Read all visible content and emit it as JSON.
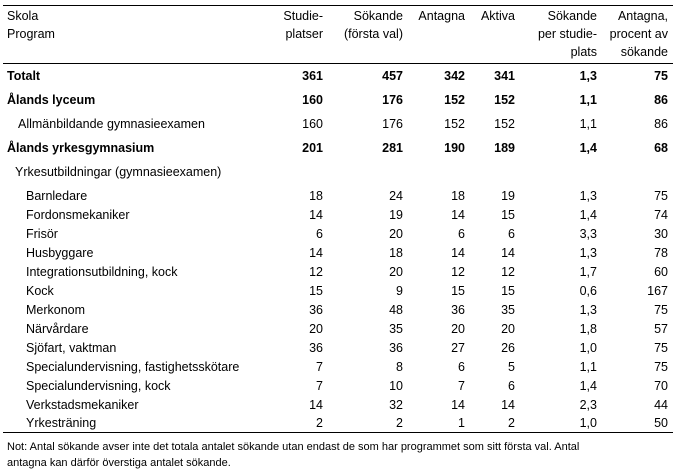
{
  "header": {
    "columns": [
      [
        "Skola",
        "Program"
      ],
      [
        "Studie-",
        "platser"
      ],
      [
        "Sökande",
        "(första val)"
      ],
      [
        "Antagna"
      ],
      [
        "Aktiva"
      ],
      [
        "Sökande",
        "per studie-",
        "plats"
      ],
      [
        "Antagna,",
        "procent av",
        "sökande"
      ]
    ]
  },
  "table": {
    "rows": [
      {
        "label": "Totalt",
        "cells": [
          "361",
          "457",
          "342",
          "341",
          "1,3",
          "75"
        ]
      },
      {
        "label": "Ålands lyceum",
        "cells": [
          "160",
          "176",
          "152",
          "152",
          "1,1",
          "86"
        ]
      },
      {
        "label": "Allmänbildande gymnasieexamen",
        "cells": [
          "160",
          "176",
          "152",
          "152",
          "1,1",
          "86"
        ]
      },
      {
        "label": "Ålands yrkesgymnasium",
        "cells": [
          "201",
          "281",
          "190",
          "189",
          "1,4",
          "68"
        ]
      },
      {
        "label": "Yrkesutbildningar (gymnasieexamen)",
        "cells": []
      },
      {
        "label": "Barnledare",
        "cells": [
          "18",
          "24",
          "18",
          "19",
          "1,3",
          "75"
        ]
      },
      {
        "label": "Fordonsmekaniker",
        "cells": [
          "14",
          "19",
          "14",
          "15",
          "1,4",
          "74"
        ]
      },
      {
        "label": "Frisör",
        "cells": [
          "6",
          "20",
          "6",
          "6",
          "3,3",
          "30"
        ]
      },
      {
        "label": "Husbyggare",
        "cells": [
          "14",
          "18",
          "14",
          "14",
          "1,3",
          "78"
        ]
      },
      {
        "label": "Integrationsutbildning, kock",
        "cells": [
          "12",
          "20",
          "12",
          "12",
          "1,7",
          "60"
        ]
      },
      {
        "label": "Kock",
        "cells": [
          "15",
          "9",
          "15",
          "15",
          "0,6",
          "167"
        ]
      },
      {
        "label": "Merkonom",
        "cells": [
          "36",
          "48",
          "36",
          "35",
          "1,3",
          "75"
        ]
      },
      {
        "label": "Närvårdare",
        "cells": [
          "20",
          "35",
          "20",
          "20",
          "1,8",
          "57"
        ]
      },
      {
        "label": "Sjöfart, vaktman",
        "cells": [
          "36",
          "36",
          "27",
          "26",
          "1,0",
          "75"
        ]
      },
      {
        "label": "Specialundervisning, fastighetsskötare",
        "cells": [
          "7",
          "8",
          "6",
          "5",
          "1,1",
          "75"
        ]
      },
      {
        "label": "Specialundervisning, kock",
        "cells": [
          "7",
          "10",
          "7",
          "6",
          "1,4",
          "70"
        ]
      },
      {
        "label": "Verkstadsmekaniker",
        "cells": [
          "14",
          "32",
          "14",
          "14",
          "2,3",
          "44"
        ]
      },
      {
        "label": "Yrkesträning",
        "cells": [
          "2",
          "2",
          "1",
          "2",
          "1,0",
          "50"
        ]
      }
    ]
  },
  "note": [
    "Not: Antal sökande avser inte det totala antalet sökande utan endast de som har programmet som sitt första val. Antal",
    "antagna kan därför överstiga antalet sökande."
  ]
}
